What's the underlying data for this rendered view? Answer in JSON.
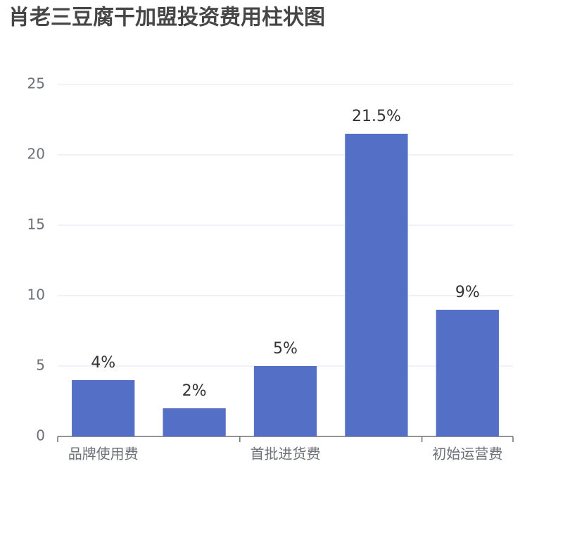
{
  "chart_data": {
    "type": "bar",
    "title": "肖老三豆腐干加盟投资费用柱状图",
    "categories": [
      "品牌使用费",
      null,
      "首批进货费",
      null,
      "初始运营费"
    ],
    "values": [
      4,
      2,
      5,
      21.5,
      9
    ],
    "value_labels": [
      "4%",
      "2%",
      "5%",
      "21.5%",
      "9%"
    ],
    "color": "#5470c6",
    "ylim": [
      0,
      25
    ],
    "yticks": [
      0,
      5,
      10,
      15,
      20,
      25
    ],
    "grid": true
  }
}
